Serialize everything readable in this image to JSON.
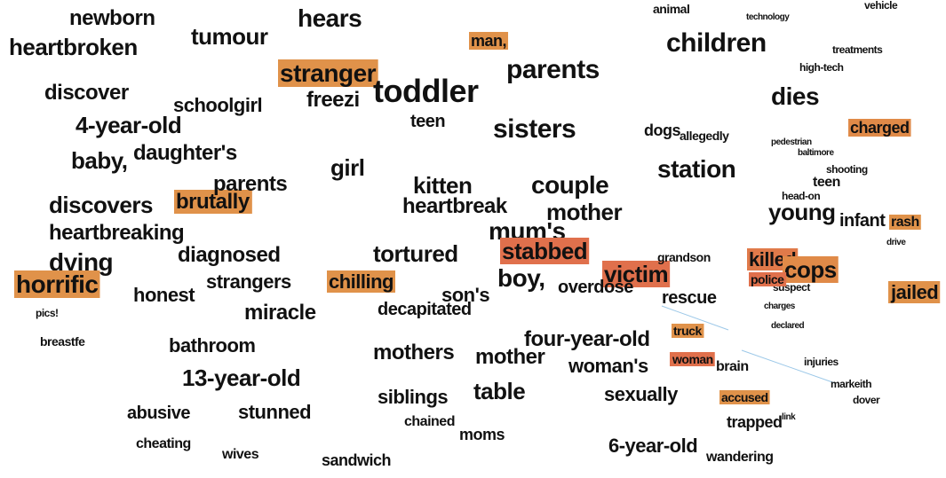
{
  "words": [
    {
      "text": "newborn"
    },
    {
      "text": "hears"
    },
    {
      "text": "heartbroken"
    },
    {
      "text": "tumour"
    },
    {
      "text": "children"
    },
    {
      "text": "parents"
    },
    {
      "text": "stranger",
      "highlight": "#e0924a"
    },
    {
      "text": "toddler"
    },
    {
      "text": "discover"
    },
    {
      "text": "dies"
    },
    {
      "text": "4-year-old"
    },
    {
      "text": "schoolgirl"
    },
    {
      "text": "sisters"
    },
    {
      "text": "baby,"
    },
    {
      "text": "daughter's"
    },
    {
      "text": "girl"
    },
    {
      "text": "station"
    },
    {
      "text": "kitten"
    },
    {
      "text": "couple"
    },
    {
      "text": "charged",
      "highlight": "#e08a48"
    },
    {
      "text": "discovers"
    },
    {
      "text": "brutally",
      "highlight": "#e0924a"
    },
    {
      "text": "parents"
    },
    {
      "text": "heartbreaking"
    },
    {
      "text": "mother"
    },
    {
      "text": "young"
    },
    {
      "text": "mum's"
    },
    {
      "text": "infant"
    },
    {
      "text": "rash",
      "highlight": "#e0924a"
    },
    {
      "text": "dying"
    },
    {
      "text": "diagnosed"
    },
    {
      "text": "tortured"
    },
    {
      "text": "stabbed",
      "highlight": "#e0704c"
    },
    {
      "text": "killed",
      "highlight": "#e07a4a"
    },
    {
      "text": "horrific",
      "highlight": "#e0924a"
    },
    {
      "text": "strangers"
    },
    {
      "text": "chilling",
      "highlight": "#e0924a"
    },
    {
      "text": "boy,"
    },
    {
      "text": "victim",
      "highlight": "#e0704c"
    },
    {
      "text": "cops",
      "highlight": "#e08a48"
    },
    {
      "text": "jailed",
      "highlight": "#e0924a"
    },
    {
      "text": "honest"
    },
    {
      "text": "miracle"
    },
    {
      "text": "son's"
    },
    {
      "text": "rescue"
    },
    {
      "text": "bathroom"
    },
    {
      "text": "four-year-old"
    },
    {
      "text": "mothers"
    },
    {
      "text": "mother"
    },
    {
      "text": "woman's"
    },
    {
      "text": "13-year-old"
    },
    {
      "text": "siblings"
    },
    {
      "text": "table"
    },
    {
      "text": "sexually"
    },
    {
      "text": "abusive"
    },
    {
      "text": "stunned"
    },
    {
      "text": "trapped"
    },
    {
      "text": "cheating"
    },
    {
      "text": "moms"
    },
    {
      "text": "6-year-old"
    },
    {
      "text": "sandwich"
    },
    {
      "text": "wandering"
    },
    {
      "text": "brain"
    },
    {
      "text": "injuries"
    },
    {
      "text": "dover"
    },
    {
      "text": "markeith"
    },
    {
      "text": "shooting"
    },
    {
      "text": "treatments"
    },
    {
      "text": "vehicle"
    },
    {
      "text": "high-tech"
    },
    {
      "text": "pedestrian"
    },
    {
      "text": "baltimore"
    },
    {
      "text": "teen"
    },
    {
      "text": "head-on"
    },
    {
      "text": "drive"
    },
    {
      "text": "suspect"
    },
    {
      "text": "charges"
    },
    {
      "text": "declared"
    },
    {
      "text": "accused",
      "highlight": "#e0924a"
    },
    {
      "text": "link"
    },
    {
      "text": "police",
      "highlight": "#e0704c"
    },
    {
      "text": "truck",
      "highlight": "#e0924a"
    },
    {
      "text": "woman",
      "highlight": "#e0704c"
    },
    {
      "text": "pics!"
    },
    {
      "text": "breastfe"
    },
    {
      "text": "animal"
    },
    {
      "text": "technology"
    },
    {
      "text": "teen"
    },
    {
      "text": "dogs"
    },
    {
      "text": "allegedly"
    },
    {
      "text": "grandson"
    },
    {
      "text": "overdose"
    },
    {
      "text": "man,",
      "highlight": "#e0924a"
    },
    {
      "text": "wives"
    },
    {
      "text": "chained"
    },
    {
      "text": "decapitated"
    },
    {
      "text": "heartbreak"
    },
    {
      "text": "freezi"
    }
  ]
}
